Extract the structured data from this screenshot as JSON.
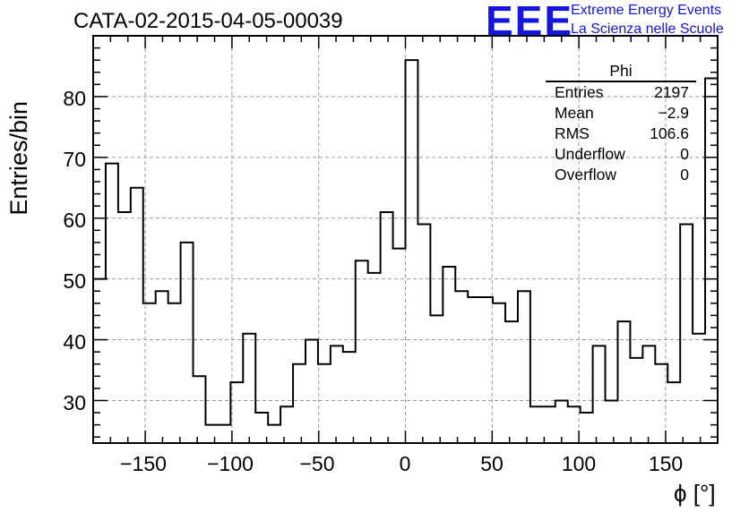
{
  "header": {
    "title": "CATA-02-2015-04-05-00039",
    "logo_text": "EEE",
    "org_line1": "Extreme Energy Events",
    "org_line2": "La Scienza nelle Scuole"
  },
  "stats": {
    "name": "Phi",
    "rows": [
      {
        "label": "Entries",
        "value": "2197"
      },
      {
        "label": "Mean",
        "value": "−2.9"
      },
      {
        "label": "RMS",
        "value": "106.6"
      },
      {
        "label": "Underflow",
        "value": "0"
      },
      {
        "label": "Overflow",
        "value": "0"
      }
    ]
  },
  "colors": {
    "logo": "#1515e0",
    "line": "#000000",
    "grid": "#9a9a9a"
  },
  "chart_data": {
    "type": "bar",
    "style": "step-histogram",
    "title": "CATA-02-2015-04-05-00039",
    "xlabel": "ϕ [°]",
    "ylabel": "Entries/bin",
    "xlim": [
      -180,
      180
    ],
    "ylim": [
      23,
      90
    ],
    "bin_width": 7.2,
    "x_ticks": [
      "−150",
      "−100",
      "−50",
      "0",
      "50",
      "100",
      "150"
    ],
    "x_tick_values": [
      -150,
      -100,
      -50,
      0,
      50,
      100,
      150
    ],
    "y_ticks": [
      "30",
      "40",
      "50",
      "60",
      "70",
      "80"
    ],
    "y_tick_values": [
      30,
      40,
      50,
      60,
      70,
      80
    ],
    "grid": true,
    "values": [
      50,
      69,
      61,
      65,
      46,
      48,
      46,
      56,
      34,
      26,
      26,
      33,
      41,
      28,
      26,
      29,
      36,
      40,
      36,
      39,
      38,
      53,
      51,
      61,
      55,
      86,
      59,
      44,
      52,
      48,
      47,
      47,
      46,
      43,
      48,
      29,
      29,
      30,
      29,
      28,
      39,
      30,
      43,
      37,
      39,
      36,
      33,
      59,
      41,
      83
    ]
  }
}
